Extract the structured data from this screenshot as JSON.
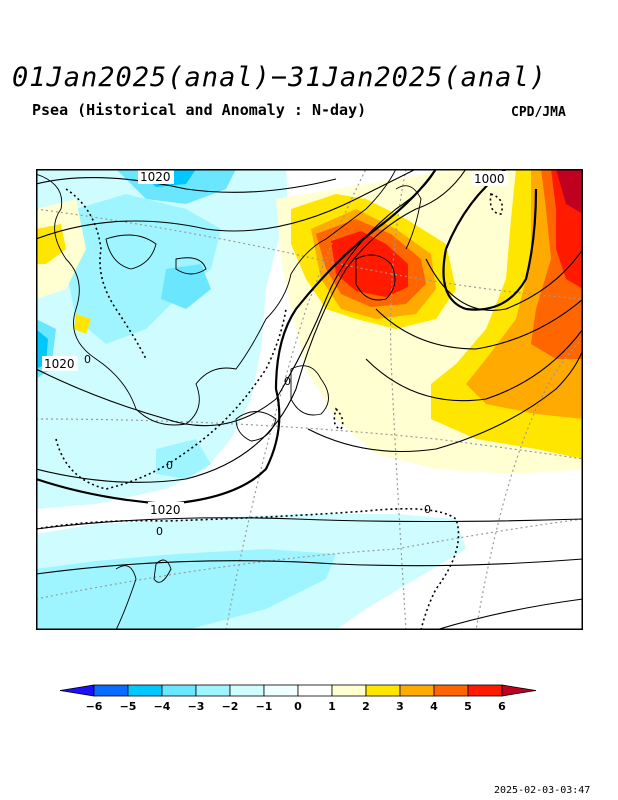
{
  "title": "01Jan2025(anal)−31Jan2025(anal)",
  "subtitle": "Psea (Historical and Anomaly : N-day)",
  "credit": "CPD/JMA",
  "timestamp": "2025-02-03-03:47",
  "contour_labels": [
    "1020",
    "1000",
    "1020",
    "1020"
  ],
  "zero_labels": [
    "0",
    "0",
    "0",
    "0",
    "0"
  ],
  "colorbar": {
    "ticks": [
      "−6",
      "−5",
      "−4",
      "−3",
      "−2",
      "−1",
      "0",
      "1",
      "2",
      "3",
      "4",
      "5",
      "6"
    ],
    "colors": [
      "#1a0fff",
      "#0a6cff",
      "#00c8ff",
      "#6be6ff",
      "#9ff5ff",
      "#cffcff",
      "#f0ffff",
      "#ffffff",
      "#ffffd2",
      "#ffe600",
      "#ffaa00",
      "#ff6600",
      "#ff1a00",
      "#c00020"
    ]
  }
}
